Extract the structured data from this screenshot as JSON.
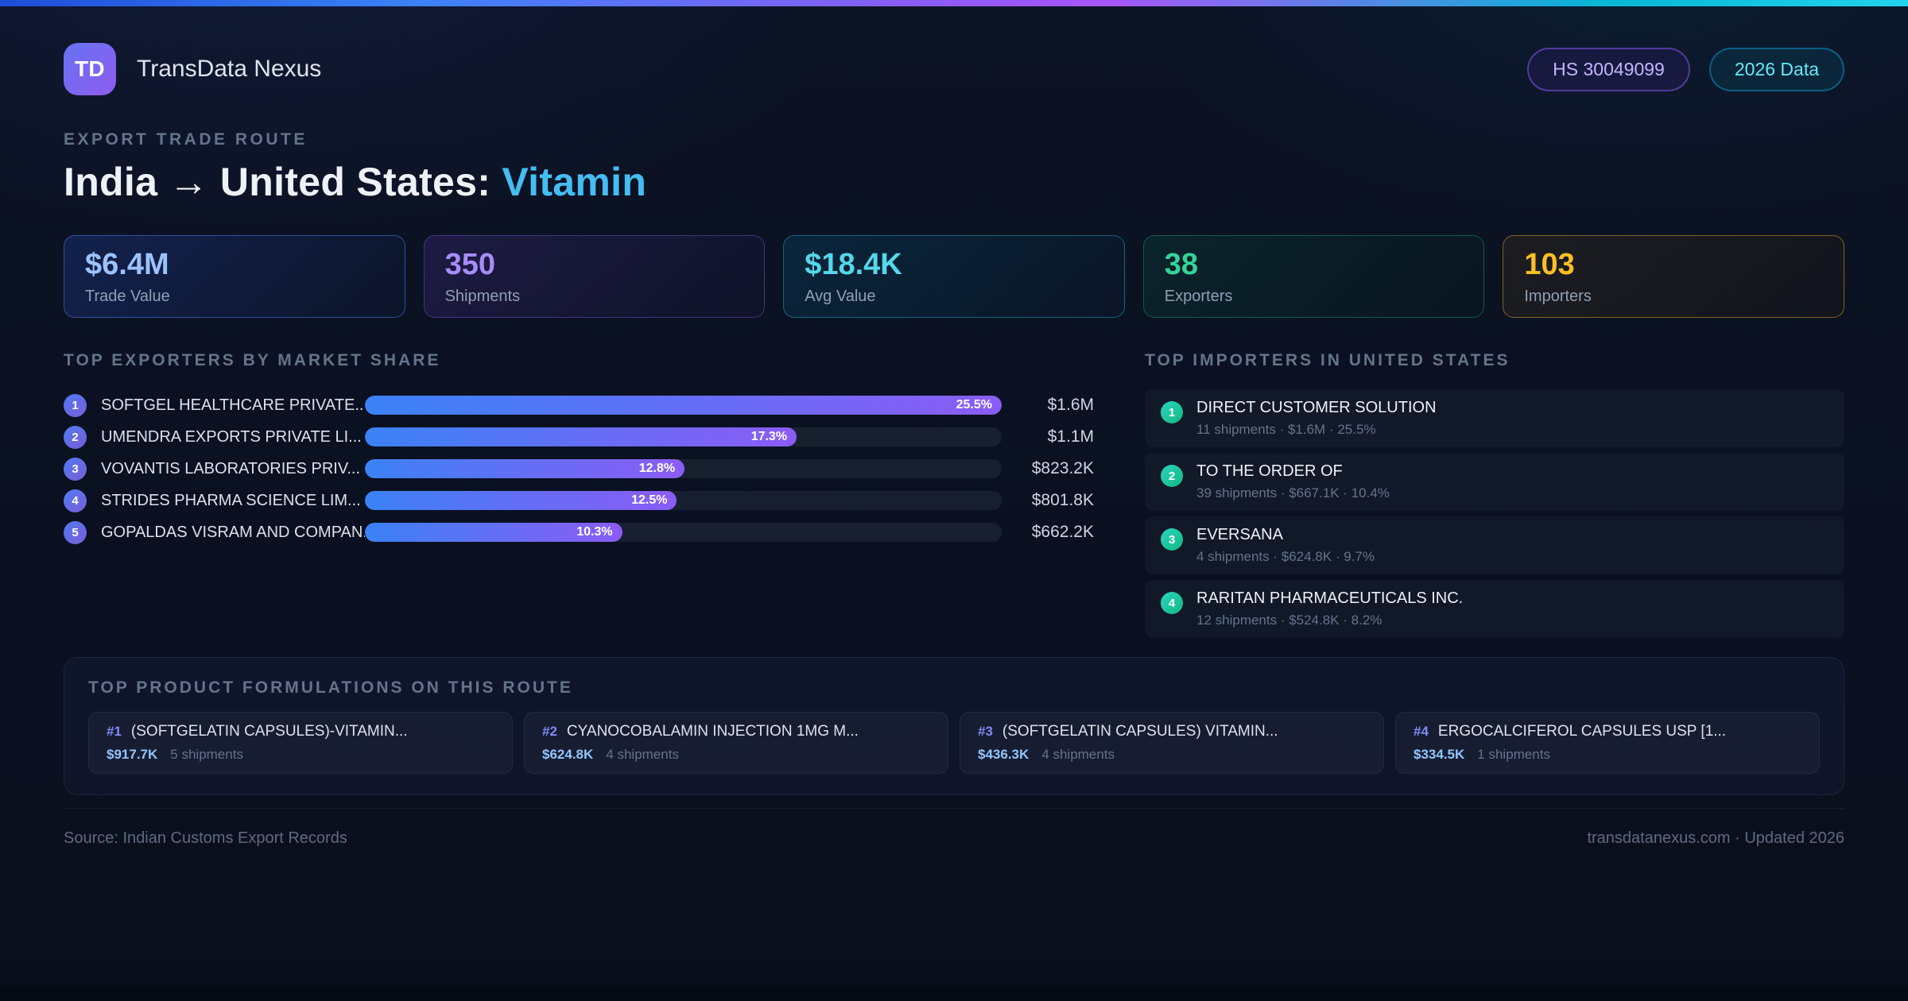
{
  "header": {
    "logo_text": "TD",
    "app_name": "TransData Nexus",
    "badges": [
      {
        "label": "HS 30049099",
        "theme": "purple"
      },
      {
        "label": "2026 Data",
        "theme": "cyan"
      }
    ]
  },
  "hero": {
    "eyebrow": "EXPORT TRADE ROUTE",
    "title_main": "India → United States:",
    "title_accent": "Vitamin"
  },
  "stats": [
    {
      "value": "$6.4M",
      "label": "Trade Value",
      "theme": "blue",
      "accent_color": "#9cc2fc"
    },
    {
      "value": "350",
      "label": "Shipments",
      "theme": "purple",
      "accent_color": "#a78bfa"
    },
    {
      "value": "$18.4K",
      "label": "Avg Value",
      "theme": "cyan",
      "accent_color": "#55d7ea"
    },
    {
      "value": "38",
      "label": "Exporters",
      "theme": "green",
      "accent_color": "#34d399"
    },
    {
      "value": "103",
      "label": "Importers",
      "theme": "amber",
      "accent_color": "#fbbf24"
    }
  ],
  "exporters": {
    "title": "TOP EXPORTERS BY MARKET SHARE",
    "items": [
      {
        "rank": "1",
        "name": "SOFTGEL HEALTHCARE PRIVATE...",
        "share_pct": 25.5,
        "share_label": "25.5%",
        "value": "$1.6M"
      },
      {
        "rank": "2",
        "name": "UMENDRA EXPORTS PRIVATE LI...",
        "share_pct": 17.3,
        "share_label": "17.3%",
        "value": "$1.1M"
      },
      {
        "rank": "3",
        "name": "VOVANTIS LABORATORIES PRIV...",
        "share_pct": 12.8,
        "share_label": "12.8%",
        "value": "$823.2K"
      },
      {
        "rank": "4",
        "name": "STRIDES PHARMA SCIENCE LIM...",
        "share_pct": 12.5,
        "share_label": "12.5%",
        "value": "$801.8K"
      },
      {
        "rank": "5",
        "name": "GOPALDAS VISRAM AND COMPAN...",
        "share_pct": 10.3,
        "share_label": "10.3%",
        "value": "$662.2K"
      }
    ]
  },
  "importers": {
    "title": "TOP IMPORTERS IN UNITED STATES",
    "items": [
      {
        "rank": "1",
        "name": "DIRECT CUSTOMER SOLUTION",
        "meta": "11 shipments · $1.6M · 25.5%"
      },
      {
        "rank": "2",
        "name": "TO THE ORDER OF",
        "meta": "39 shipments · $667.1K · 10.4%"
      },
      {
        "rank": "3",
        "name": "EVERSANA",
        "meta": "4 shipments · $624.8K · 9.7%"
      },
      {
        "rank": "4",
        "name": "RARITAN PHARMACEUTICALS INC.",
        "meta": "12 shipments · $524.8K · 8.2%"
      }
    ]
  },
  "products": {
    "title": "TOP PRODUCT FORMULATIONS ON THIS ROUTE",
    "items": [
      {
        "rank": "#1",
        "name": "(SOFTGELATIN CAPSULES)-VITAMIN...",
        "value": "$917.7K",
        "shipments": "5 shipments"
      },
      {
        "rank": "#2",
        "name": "CYANOCOBALAMIN INJECTION 1MG M...",
        "value": "$624.8K",
        "shipments": "4 shipments"
      },
      {
        "rank": "#3",
        "name": "(SOFTGELATIN CAPSULES) VITAMIN...",
        "value": "$436.3K",
        "shipments": "4 shipments"
      },
      {
        "rank": "#4",
        "name": "ERGOCALCIFEROL CAPSULES USP [1...",
        "value": "$334.5K",
        "shipments": "1 shipments"
      }
    ]
  },
  "footer": {
    "source": "Source: Indian Customs Export Records",
    "site": "transdatanexus.com · Updated 2026"
  }
}
